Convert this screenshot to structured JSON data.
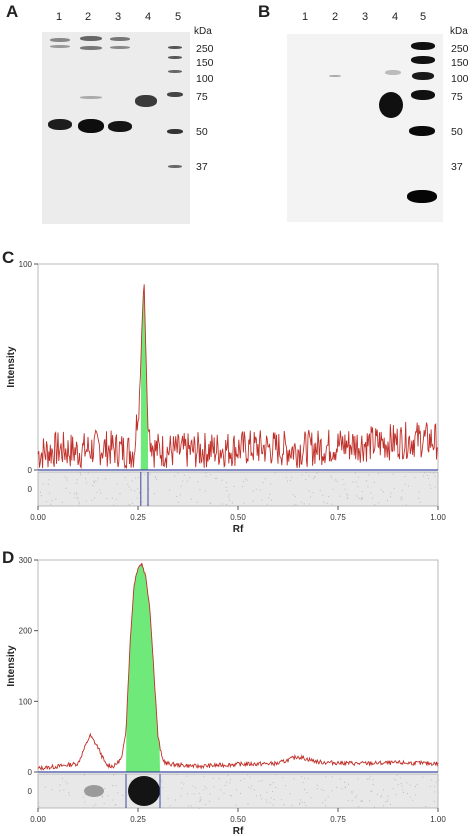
{
  "panels": {
    "A": {
      "letter": "A",
      "lanes": [
        "1",
        "2",
        "3",
        "4",
        "5"
      ],
      "unit": "kDa",
      "markers": [
        "250",
        "150",
        "100",
        "75",
        "50",
        "37"
      ]
    },
    "B": {
      "letter": "B",
      "lanes": [
        "1",
        "2",
        "3",
        "4",
        "5"
      ],
      "unit": "kDa",
      "markers": [
        "250",
        "150",
        "100",
        "75",
        "50",
        "37"
      ]
    },
    "C": {
      "letter": "C"
    },
    "D": {
      "letter": "D"
    }
  },
  "chart_data": [
    {
      "type": "line",
      "panel": "C",
      "xlabel": "Rf",
      "ylabel": "Intensity",
      "xlim": [
        0,
        1
      ],
      "ylim": [
        0,
        100
      ],
      "xticks": [
        "0.00",
        "0.25",
        "0.50",
        "0.75",
        "1.00"
      ],
      "yticks": [
        "0",
        "100"
      ],
      "line_color": "#c0302a",
      "fill_color": "#6fea7a",
      "baseline_color": "#3a4aa0",
      "peak": {
        "rf": 0.265,
        "height": 93
      },
      "integration_range": [
        0.257,
        0.275
      ],
      "noise_level": 9,
      "series": [
        {
          "x": [
            0.0,
            0.05,
            0.1,
            0.15,
            0.2,
            0.24,
            0.255,
            0.26,
            0.265,
            0.27,
            0.275,
            0.29,
            0.35,
            0.45,
            0.55,
            0.65,
            0.75,
            0.85,
            0.95,
            1.0
          ],
          "y": [
            8,
            10,
            9,
            11,
            10,
            9,
            40,
            70,
            93,
            55,
            20,
            10,
            9,
            10,
            11,
            10,
            12,
            13,
            15,
            14
          ]
        }
      ]
    },
    {
      "type": "line",
      "panel": "D",
      "xlabel": "Rf",
      "ylabel": "Intensity",
      "xlim": [
        0,
        1
      ],
      "ylim": [
        0,
        300
      ],
      "xticks": [
        "0.00",
        "0.25",
        "0.50",
        "0.75",
        "1.00"
      ],
      "yticks": [
        "0",
        "100",
        "200",
        "300"
      ],
      "line_color": "#c0302a",
      "fill_color": "#6fea7a",
      "baseline_color": "#3a4aa0",
      "integration_range": [
        0.22,
        0.305
      ],
      "series": [
        {
          "x": [
            0.0,
            0.05,
            0.1,
            0.13,
            0.15,
            0.17,
            0.19,
            0.21,
            0.22,
            0.23,
            0.24,
            0.25,
            0.26,
            0.27,
            0.28,
            0.29,
            0.3,
            0.31,
            0.32,
            0.35,
            0.4,
            0.5,
            0.6,
            0.65,
            0.7,
            0.8,
            0.9,
            1.0
          ],
          "y": [
            5,
            8,
            12,
            52,
            35,
            10,
            8,
            20,
            60,
            180,
            265,
            290,
            295,
            275,
            230,
            140,
            50,
            20,
            12,
            10,
            8,
            11,
            12,
            22,
            14,
            12,
            13,
            12
          ]
        }
      ]
    }
  ]
}
